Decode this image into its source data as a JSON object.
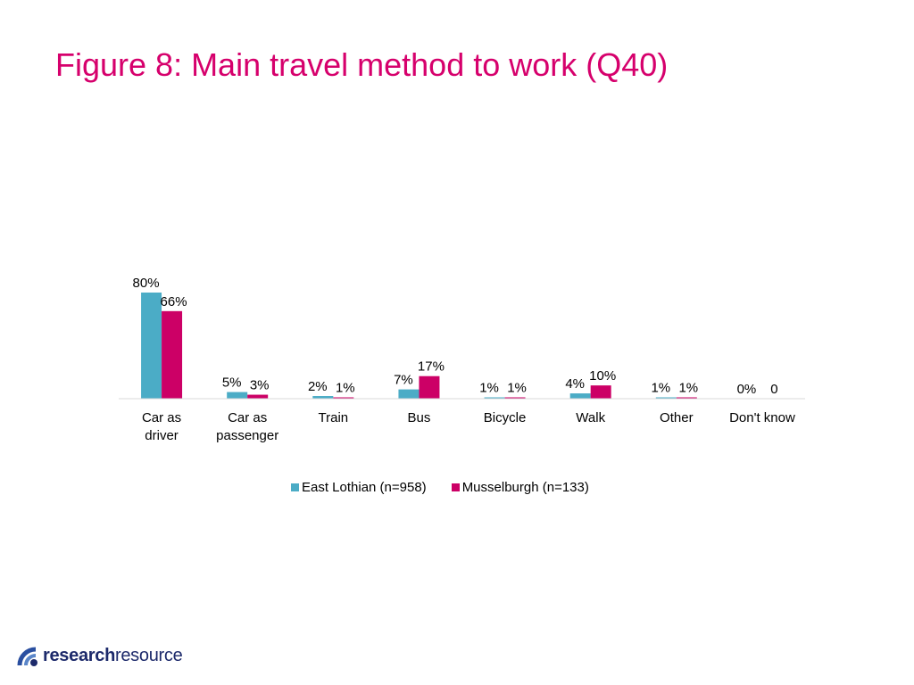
{
  "title": "Figure 8: Main travel method to work (Q40)",
  "colors": {
    "title": "#d6006c",
    "east_lothian": "#4bacc6",
    "musselburgh": "#cc0066",
    "axis": "#d9d9d9"
  },
  "chart_data": {
    "type": "bar",
    "title": "",
    "xlabel": "",
    "ylabel": "",
    "ylim": [
      0,
      100
    ],
    "grid": false,
    "legend": "bottom",
    "categories": [
      [
        "Car as",
        "driver"
      ],
      [
        "Car as",
        "passenger"
      ],
      [
        "Train"
      ],
      [
        "Bus"
      ],
      [
        "Bicycle"
      ],
      [
        "Walk"
      ],
      [
        "Other"
      ],
      [
        "Don't know"
      ]
    ],
    "series": [
      {
        "name": "East Lothian (n=958)",
        "values": [
          80,
          5,
          2,
          7,
          1,
          4,
          1,
          0
        ],
        "labels": [
          "80%",
          "5%",
          "2%",
          "7%",
          "1%",
          "4%",
          "1%",
          "0%"
        ]
      },
      {
        "name": "Musselburgh (n=133)",
        "values": [
          66,
          3,
          1,
          17,
          1,
          10,
          1,
          0
        ],
        "labels": [
          "66%",
          "3%",
          "1%",
          "17%",
          "1%",
          "10%",
          "1%",
          "0"
        ]
      }
    ]
  },
  "logo": {
    "icon": "research-resource-logo-icon",
    "bold": "research",
    "light": "resource"
  }
}
